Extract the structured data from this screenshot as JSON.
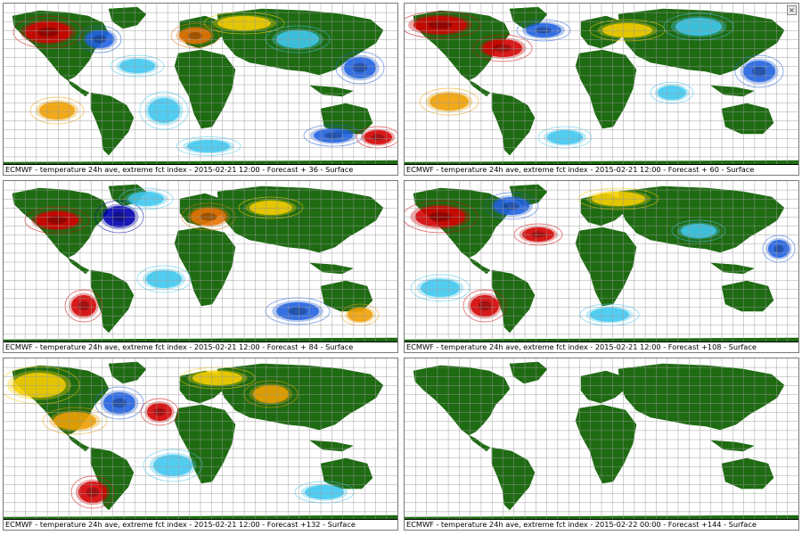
{
  "panels": [
    {
      "caption": "ECMWF - temperature 24h ave, extreme fct index - 2015-02-21 12:00 - Forecast + 36 - Surface",
      "has_anomaly": true
    },
    {
      "caption": "ECMWF - temperature 24h ave, extreme fct index - 2015-02-21 12:00 - Forecast + 60 - Surface",
      "has_anomaly": true
    },
    {
      "caption": "ECMWF - temperature 24h ave, extreme fct index - 2015-02-21 12:00 - Forecast + 84 - Surface",
      "has_anomaly": true
    },
    {
      "caption": "ECMWF - temperature 24h ave, extreme fct index - 2015-02-21 12:00 - Forecast +108 - Surface",
      "has_anomaly": true
    },
    {
      "caption": "ECMWF - temperature 24h ave, extreme fct index - 2015-02-21 12:00 - Forecast +132 - Surface",
      "has_anomaly": true
    },
    {
      "caption": "ECMWF - temperature 24h ave, extreme fct index - 2015-02-22 00:00 - Forecast +144 - Surface",
      "has_anomaly": false
    }
  ],
  "colors": {
    "land": "#1e6b12",
    "grid": "#9a9a9a",
    "warm_light": "#f0a000",
    "warm_mid": "#e87000",
    "warm_strong": "#d40000",
    "cold_light": "#40c8f0",
    "cold_mid": "#2060e0",
    "cold_strong": "#0000b0",
    "yellow": "#f8d000"
  }
}
